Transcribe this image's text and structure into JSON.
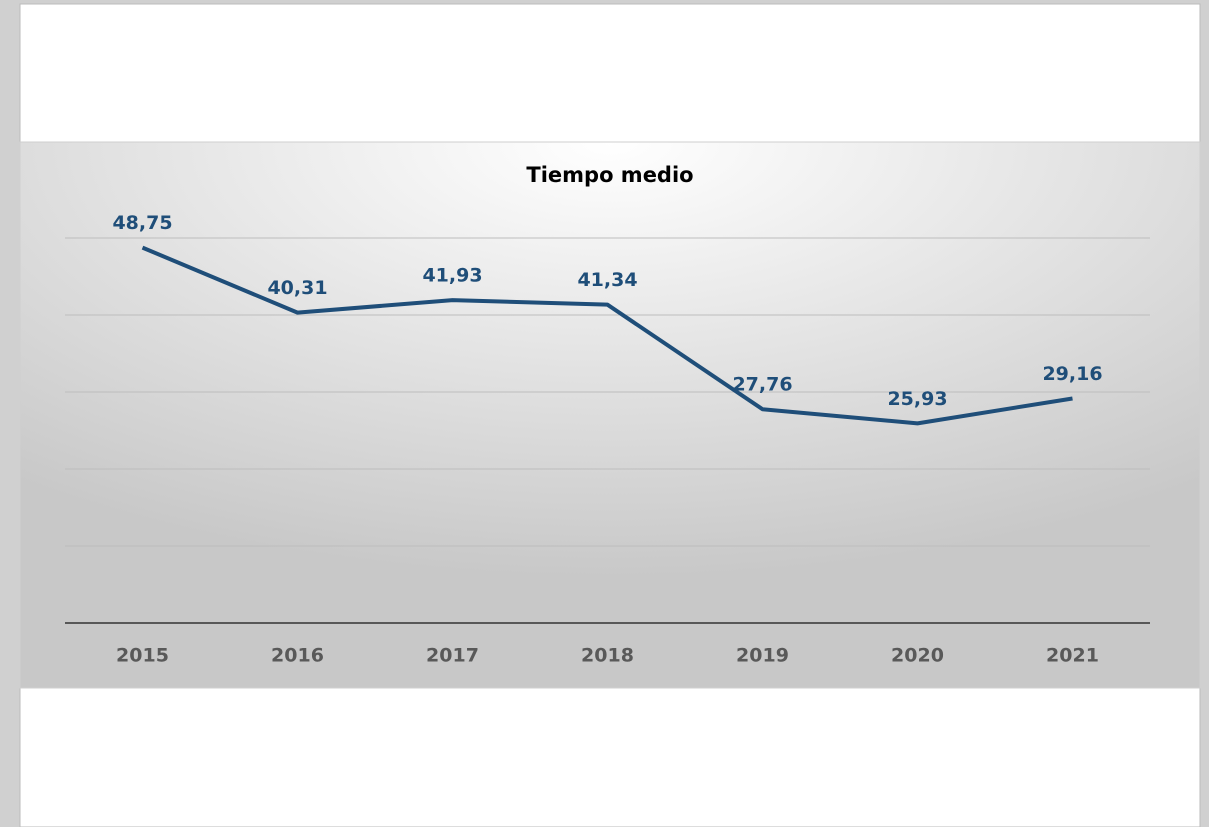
{
  "chart_data": {
    "type": "line",
    "title": "Tiempo medio",
    "categories": [
      "2015",
      "2016",
      "2017",
      "2018",
      "2019",
      "2020",
      "2021"
    ],
    "series": [
      {
        "name": "Tiempo medio",
        "color": "#1f4e79",
        "values": [
          48.75,
          40.31,
          41.93,
          41.34,
          27.76,
          25.93,
          29.16
        ],
        "value_labels": [
          "48,75",
          "40,31",
          "41,93",
          "41,34",
          "27,76",
          "25,93",
          "29,16"
        ]
      }
    ],
    "ylim": [
      0,
      50
    ],
    "yticks": [
      0,
      10,
      20,
      30,
      40,
      50
    ],
    "grid": true
  }
}
